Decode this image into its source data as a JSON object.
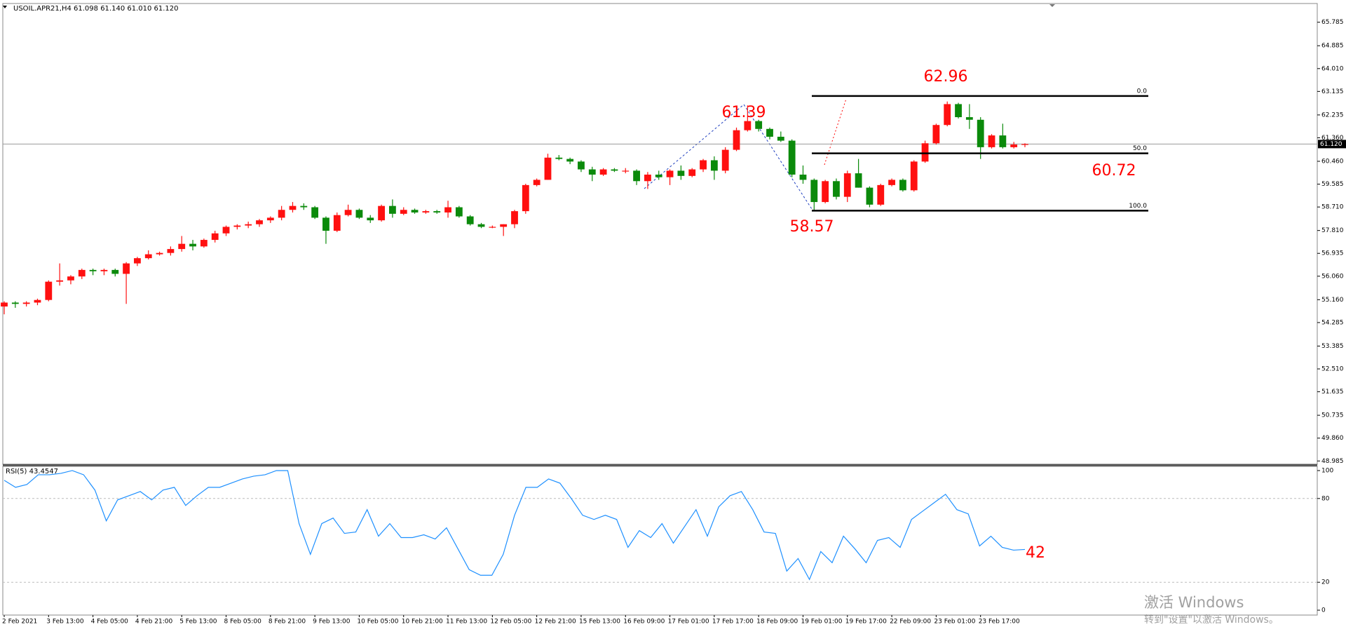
{
  "chart_data": [
    {
      "type": "candlestick",
      "title": "USOIL.APR21,H4 61.098 61.140 61.010 61.120",
      "up_color": "#ff1010",
      "down_color": "#0b8a0b",
      "categories": [
        "2 Feb 2021",
        null,
        null,
        null,
        "3 Feb 13:00",
        null,
        null,
        null,
        "4 Feb 05:00",
        null,
        null,
        null,
        "4 Feb 21:00",
        null,
        null,
        null,
        "5 Feb 13:00",
        null,
        null,
        null,
        "8 Feb 05:00",
        null,
        null,
        null,
        "8 Feb 21:00",
        null,
        null,
        null,
        "9 Feb 13:00",
        null,
        null,
        null,
        "10 Feb 05:00",
        null,
        null,
        null,
        "10 Feb 21:00",
        null,
        null,
        null,
        "11 Feb 13:00",
        null,
        null,
        null,
        "12 Feb 05:00",
        null,
        null,
        null,
        "12 Feb 21:00",
        null,
        null,
        null,
        "15 Feb 13:00",
        null,
        null,
        null,
        "16 Feb 09:00",
        null,
        null,
        null,
        "17 Feb 01:00",
        null,
        null,
        null,
        "17 Feb 17:00",
        null,
        null,
        null,
        "18 Feb 09:00",
        null,
        null,
        null,
        "19 Feb 01:00",
        null,
        null,
        null,
        "19 Feb 17:00",
        null,
        null,
        null,
        "22 Feb 09:00",
        null,
        null,
        null,
        "23 Feb 01:00",
        null,
        null,
        null,
        "23 Feb 17:00",
        null,
        null,
        null,
        null
      ],
      "open": [
        54.9,
        55.05,
        55.0,
        55.05,
        55.15,
        55.85,
        55.9,
        56.05,
        56.3,
        56.25,
        56.3,
        56.15,
        56.55,
        56.75,
        56.9,
        56.95,
        57.1,
        57.3,
        57.2,
        57.45,
        57.7,
        57.95,
        58.0,
        58.05,
        58.2,
        58.3,
        58.6,
        58.75,
        58.7,
        58.3,
        57.8,
        58.4,
        58.6,
        58.3,
        58.2,
        58.75,
        58.45,
        58.6,
        58.5,
        58.55,
        58.5,
        58.7,
        58.35,
        58.05,
        57.95,
        57.95,
        58.05,
        58.55,
        59.55,
        59.75,
        60.6,
        60.55,
        60.45,
        60.15,
        59.95,
        60.15,
        60.1,
        60.1,
        59.7,
        59.95,
        59.85,
        60.1,
        59.9,
        60.15,
        60.5,
        60.1,
        60.9,
        61.65,
        62.0,
        61.7,
        61.4,
        61.25,
        59.95,
        59.75,
        58.9,
        59.7,
        59.1,
        60.0,
        59.45,
        58.8,
        59.55,
        59.75,
        59.35,
        60.45,
        61.15,
        61.85,
        62.65,
        62.15,
        62.05,
        61.0,
        61.45,
        61.0,
        61.1
      ],
      "high": [
        55.1,
        55.1,
        55.1,
        55.2,
        55.9,
        56.55,
        56.1,
        56.35,
        56.35,
        56.35,
        56.35,
        56.6,
        56.8,
        57.05,
        57.0,
        57.2,
        57.6,
        57.45,
        57.5,
        57.8,
        58.0,
        58.05,
        58.15,
        58.25,
        58.35,
        58.75,
        58.9,
        58.85,
        58.75,
        58.35,
        58.5,
        58.8,
        58.65,
        58.4,
        58.8,
        59.0,
        58.7,
        58.65,
        58.6,
        58.6,
        58.95,
        58.75,
        58.4,
        58.1,
        58.0,
        58.05,
        58.6,
        59.6,
        59.8,
        60.75,
        60.7,
        60.6,
        60.5,
        60.25,
        60.2,
        60.2,
        60.2,
        60.15,
        60.05,
        60.1,
        60.15,
        60.3,
        60.2,
        60.55,
        60.65,
        61.0,
        61.75,
        62.6,
        62.05,
        61.75,
        61.6,
        61.3,
        60.3,
        59.8,
        59.75,
        59.8,
        60.1,
        60.55,
        59.5,
        59.6,
        59.8,
        59.8,
        60.5,
        61.25,
        61.9,
        62.75,
        62.7,
        62.65,
        62.15,
        61.5,
        61.9,
        61.2,
        61.15
      ],
      "low": [
        54.6,
        54.85,
        54.9,
        54.95,
        55.1,
        55.7,
        55.75,
        55.95,
        56.1,
        56.1,
        56.05,
        55.0,
        56.45,
        56.7,
        56.85,
        56.85,
        57.0,
        57.05,
        57.15,
        57.35,
        57.6,
        57.85,
        57.9,
        57.95,
        58.1,
        58.2,
        58.5,
        58.6,
        58.25,
        57.3,
        57.75,
        58.35,
        58.25,
        58.1,
        58.15,
        58.3,
        58.4,
        58.45,
        58.45,
        58.45,
        58.3,
        58.3,
        58.0,
        57.9,
        57.9,
        57.6,
        57.9,
        58.45,
        59.5,
        59.75,
        60.5,
        60.35,
        60.05,
        59.7,
        59.9,
        60.05,
        60.0,
        59.55,
        59.4,
        59.75,
        59.55,
        59.75,
        59.85,
        60.05,
        59.75,
        60.0,
        60.85,
        61.6,
        61.6,
        61.3,
        61.2,
        59.85,
        59.6,
        58.6,
        58.85,
        59.0,
        58.9,
        59.45,
        58.7,
        58.75,
        59.5,
        59.3,
        59.3,
        60.4,
        61.1,
        61.8,
        62.1,
        61.7,
        60.55,
        60.95,
        60.95,
        60.95,
        61.0
      ],
      "close": [
        55.05,
        55.0,
        55.05,
        55.15,
        55.85,
        55.9,
        56.05,
        56.3,
        56.25,
        56.3,
        56.15,
        56.55,
        56.75,
        56.9,
        56.95,
        57.1,
        57.3,
        57.2,
        57.45,
        57.7,
        57.95,
        58.0,
        58.05,
        58.2,
        58.3,
        58.6,
        58.75,
        58.7,
        58.3,
        57.8,
        58.4,
        58.6,
        58.3,
        58.2,
        58.75,
        58.45,
        58.6,
        58.5,
        58.55,
        58.5,
        58.7,
        58.35,
        58.05,
        57.95,
        57.95,
        58.05,
        58.55,
        59.55,
        59.75,
        60.6,
        60.55,
        60.45,
        60.15,
        59.95,
        60.15,
        60.1,
        60.1,
        59.7,
        59.95,
        59.85,
        60.1,
        59.9,
        60.15,
        60.5,
        60.1,
        60.9,
        61.65,
        62.0,
        61.7,
        61.4,
        61.25,
        59.95,
        59.75,
        58.9,
        59.7,
        59.1,
        60.0,
        59.45,
        58.8,
        59.55,
        59.75,
        59.35,
        60.45,
        61.15,
        61.85,
        62.65,
        62.15,
        62.05,
        61.0,
        61.45,
        61.0,
        61.1,
        61.12
      ],
      "ylim": [
        48.885,
        66.475
      ],
      "yticks": [
        65.785,
        64.885,
        {
          "value": 64.01,
          "label": "64.010"
        },
        63.135,
        62.235,
        {
          "value": 61.36,
          "label": "61.360"
        },
        {
          "value": 60.46,
          "label": "60.460"
        },
        59.585,
        {
          "value": 58.71,
          "label": "58.710"
        },
        {
          "value": 57.81,
          "label": "57.810"
        },
        56.935,
        {
          "value": 56.06,
          "label": "56.060"
        },
        {
          "value": 55.16,
          "label": "55.160"
        },
        54.285,
        53.385,
        {
          "value": 52.51,
          "label": "52.510"
        },
        51.635,
        50.735,
        {
          "value": 49.86,
          "label": "49.860"
        },
        48.985
      ],
      "current_price": {
        "value": 61.12,
        "label": "61.120"
      },
      "fibonacci": [
        {
          "label": "0.0",
          "price": 62.96
        },
        {
          "label": "50.0",
          "price": 60.765
        },
        {
          "label": "100.0",
          "price": 58.57
        }
      ],
      "annotations": [
        "61.39",
        "62.96",
        "58.57",
        "60.72"
      ]
    },
    {
      "type": "line",
      "title": "RSI(5) 43.4547",
      "color": "#1e90ff",
      "values": [
        93,
        88,
        90,
        97,
        97,
        98,
        100,
        97,
        86,
        64,
        79,
        82,
        85,
        79,
        86,
        88,
        75,
        82,
        88,
        88,
        91,
        94,
        96,
        97,
        100,
        100,
        62,
        40,
        62,
        66,
        55,
        56,
        72,
        53,
        62,
        52,
        52,
        54,
        51,
        59,
        44,
        29,
        25,
        25,
        40,
        68,
        88,
        88,
        94,
        91,
        80,
        68,
        65,
        68,
        65,
        45,
        57,
        52,
        62,
        48,
        60,
        72,
        53,
        74,
        82,
        85,
        72,
        56,
        55,
        28,
        37,
        22,
        42,
        34,
        53,
        44,
        34,
        50,
        52,
        45,
        65,
        71,
        77,
        83,
        72,
        69,
        46,
        53,
        45,
        43,
        43.5
      ],
      "ylim": [
        -3,
        103
      ],
      "yticks": [
        0,
        20,
        80,
        100
      ],
      "grid_levels": [
        20,
        80
      ],
      "annotations": [
        "42"
      ]
    }
  ],
  "watermark": {
    "line1": "激活 Windows",
    "line2": "转到\"设置\"以激活 Windows。"
  }
}
